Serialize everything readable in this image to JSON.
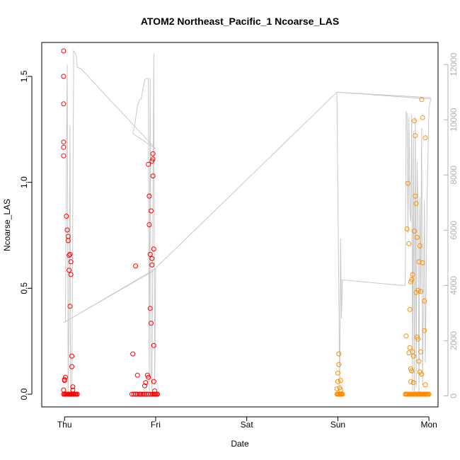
{
  "chart_data": {
    "type": "scatter",
    "title": "ATOM2 Northeast_Pacific_1 Ncoarse_LAS",
    "xlabel": "Date",
    "ylabel": "Ncoarse_LAS",
    "x_ticks": [
      {
        "label": "Thu",
        "day": 0
      },
      {
        "label": "Fri",
        "day": 1
      },
      {
        "label": "Sat",
        "day": 2
      },
      {
        "label": "Sun",
        "day": 3
      },
      {
        "label": "Mon",
        "day": 4
      }
    ],
    "xlim_days": [
      -0.25,
      4.1
    ],
    "ylim": [
      -0.06,
      1.66
    ],
    "y_ticks": [
      0.0,
      0.5,
      1.0,
      1.5
    ],
    "y2lim": [
      -400,
      12800
    ],
    "y2_ticks": [
      0,
      2000,
      4000,
      6000,
      8000,
      10000,
      12000
    ],
    "grid": false,
    "series": [
      {
        "color": "#ff0000",
        "x": [
          -0.01,
          -0.01,
          -0.01,
          -0.01,
          -0.01,
          -0.01,
          0.0,
          0.01,
          0.02,
          0.02,
          0.03,
          0.04,
          0.04,
          0.05,
          0.05,
          0.06,
          0.06,
          0.07,
          0.07,
          0.08,
          0.08,
          0.09,
          0.09,
          0.09,
          0.1,
          0.1,
          0.12,
          -0.01,
          0.0,
          0.01,
          0.02,
          0.03,
          0.04,
          0.05,
          0.06,
          0.07,
          0.08,
          0.09,
          0.1,
          0.11,
          0.12,
          0.13,
          0.14,
          -0.01,
          0.0,
          0.02,
          0.03,
          0.05,
          0.06,
          0.07,
          0.08,
          0.75,
          0.78,
          0.8,
          0.83,
          0.86,
          0.88,
          0.89,
          0.9,
          0.91,
          0.92,
          0.92,
          0.93,
          0.93,
          0.94,
          0.94,
          0.95,
          0.95,
          0.96,
          0.96,
          0.96,
          0.97,
          0.97,
          0.97,
          0.98,
          0.98,
          0.98,
          0.99,
          0.99,
          0.74,
          0.76,
          0.78,
          0.8,
          0.82,
          0.84,
          0.86,
          0.88,
          0.9,
          0.92,
          0.94,
          0.96,
          0.98,
          1.0,
          1.01,
          1.02
        ],
        "y": [
          1.62,
          1.5,
          1.37,
          1.19,
          1.165,
          1.125,
          0.065,
          0.08,
          0.84,
          0.0,
          0.775,
          0.745,
          0.725,
          0.655,
          0.585,
          0.415,
          0.66,
          0.625,
          0.565,
          0.18,
          0.13,
          0.035,
          0.0,
          0.02,
          0.0,
          0.0,
          0.0,
          0.0,
          0.0,
          0.0,
          0.0,
          0.0,
          0.0,
          0.0,
          0.0,
          0.0,
          0.0,
          0.0,
          0.0,
          0.0,
          0.0,
          0.0,
          0.0,
          0.02,
          0.07,
          0.0,
          0.0,
          0.0,
          0.0,
          0.0,
          0.0,
          0.19,
          0.605,
          0.09,
          0.0,
          0.0,
          0.04,
          0.055,
          0.0,
          0.09,
          0.08,
          1.085,
          0.935,
          0.8,
          0.66,
          0.405,
          0.335,
          0.865,
          0.64,
          0.61,
          1.1,
          1.135,
          1.11,
          1.03,
          0.685,
          0.23,
          0.06,
          0.015,
          0.0,
          0.0,
          0.0,
          0.0,
          0.0,
          0.0,
          0.0,
          0.0,
          0.0,
          0.0,
          0.0,
          0.0,
          0.0,
          0.0,
          0.0,
          0.0,
          0.0
        ]
      },
      {
        "color": "#ff8c00",
        "x": [
          2.99,
          3.0,
          3.0,
          3.01,
          3.01,
          3.02,
          3.02,
          3.03,
          3.03,
          3.03,
          3.04,
          2.99,
          3.0,
          3.01,
          3.02,
          3.03,
          3.04,
          3.05,
          3.75,
          3.76,
          3.77,
          3.78,
          3.78,
          3.79,
          3.79,
          3.8,
          3.8,
          3.8,
          3.81,
          3.81,
          3.82,
          3.82,
          3.83,
          3.83,
          3.84,
          3.84,
          3.85,
          3.85,
          3.86,
          3.86,
          3.87,
          3.87,
          3.88,
          3.88,
          3.89,
          3.89,
          3.9,
          3.9,
          3.91,
          3.91,
          3.92,
          3.92,
          3.93,
          3.93,
          3.94,
          3.95,
          3.95,
          3.96,
          3.96,
          3.97,
          3.98,
          3.74,
          3.75,
          3.76,
          3.77,
          3.78,
          3.79,
          3.8,
          3.81,
          3.82,
          3.83,
          3.84,
          3.85,
          3.86,
          3.87,
          3.88,
          3.89,
          3.9,
          3.91,
          3.92,
          3.93,
          3.94,
          3.95,
          3.96,
          3.97,
          3.98,
          3.99,
          4.0
        ],
        "y": [
          0.025,
          0.06,
          0.1,
          0.19,
          0.14,
          0.0,
          0.03,
          0.02,
          0.0,
          0.065,
          0.0,
          0.0,
          0.0,
          0.0,
          0.0,
          0.0,
          0.0,
          0.0,
          0.275,
          0.78,
          0.995,
          0.71,
          0.195,
          0.22,
          0.4,
          0.53,
          0.12,
          0.06,
          0.54,
          0.11,
          0.2,
          0.565,
          0.18,
          0.055,
          0.77,
          1.29,
          1.22,
          0.935,
          0.9,
          0.48,
          0.74,
          0.27,
          0.49,
          0.26,
          0.155,
          0.625,
          0.7,
          0.105,
          0.485,
          0.2,
          0.095,
          1.39,
          1.305,
          0.62,
          0.0,
          0.44,
          0.3,
          1.21,
          0.045,
          0.0,
          0.0,
          0.0,
          0.0,
          0.0,
          0.0,
          0.0,
          0.0,
          0.0,
          0.0,
          0.0,
          0.0,
          0.0,
          0.0,
          0.0,
          0.0,
          0.0,
          0.0,
          0.0,
          0.0,
          0.0,
          0.0,
          0.0,
          0.0,
          0.0,
          0.0,
          0.0,
          0.0,
          0.0
        ]
      }
    ],
    "secondary_line": {
      "color": "#c8c8c8",
      "points": [
        [
          -0.01,
          2650
        ],
        [
          0.01,
          2700
        ],
        [
          0.02,
          8500
        ],
        [
          0.03,
          12000
        ],
        [
          0.04,
          100
        ],
        [
          0.05,
          3000
        ],
        [
          0.06,
          9800
        ],
        [
          0.065,
          500
        ],
        [
          0.08,
          0
        ],
        [
          0.1,
          12500
        ],
        [
          0.12,
          12400
        ],
        [
          0.13,
          12300
        ],
        [
          0.14,
          11900
        ],
        [
          0.18,
          11850
        ],
        [
          1.0,
          8950
        ],
        [
          0.75,
          9500
        ],
        [
          0.77,
          9800
        ],
        [
          0.8,
          10500
        ],
        [
          0.82,
          10700
        ],
        [
          0.84,
          10750
        ],
        [
          0.88,
          11450
        ],
        [
          0.9,
          11500
        ],
        [
          0.92,
          11500
        ],
        [
          0.93,
          200
        ],
        [
          0.94,
          11500
        ],
        [
          0.95,
          600
        ],
        [
          0.96,
          200
        ],
        [
          0.98,
          12400
        ],
        [
          0.99,
          400
        ],
        [
          1.0,
          4600
        ],
        [
          -0.01,
          2650
        ],
        [
          0.96,
          4500
        ],
        [
          2.99,
          11000
        ],
        [
          3.02,
          300
        ],
        [
          3.03,
          5700
        ],
        [
          3.04,
          2800
        ],
        [
          3.05,
          4200
        ],
        [
          3.7,
          4000
        ],
        [
          3.74,
          4000
        ],
        [
          3.75,
          10300
        ],
        [
          3.76,
          10200
        ],
        [
          3.77,
          5900
        ],
        [
          3.78,
          10100
        ],
        [
          3.79,
          6700
        ],
        [
          3.8,
          6300
        ],
        [
          3.81,
          10200
        ],
        [
          3.82,
          200
        ],
        [
          3.83,
          9600
        ],
        [
          3.84,
          100
        ],
        [
          3.85,
          10100
        ],
        [
          3.86,
          300
        ],
        [
          3.87,
          8500
        ],
        [
          3.88,
          6700
        ],
        [
          3.89,
          100
        ],
        [
          3.9,
          7200
        ],
        [
          3.91,
          3700
        ],
        [
          3.92,
          9700
        ],
        [
          3.93,
          400
        ],
        [
          3.95,
          7100
        ],
        [
          3.96,
          1200
        ],
        [
          3.98,
          7300
        ],
        [
          4.0,
          10400
        ],
        [
          4.02,
          10750
        ],
        [
          2.99,
          11000
        ],
        [
          4.02,
          10800
        ]
      ]
    }
  }
}
